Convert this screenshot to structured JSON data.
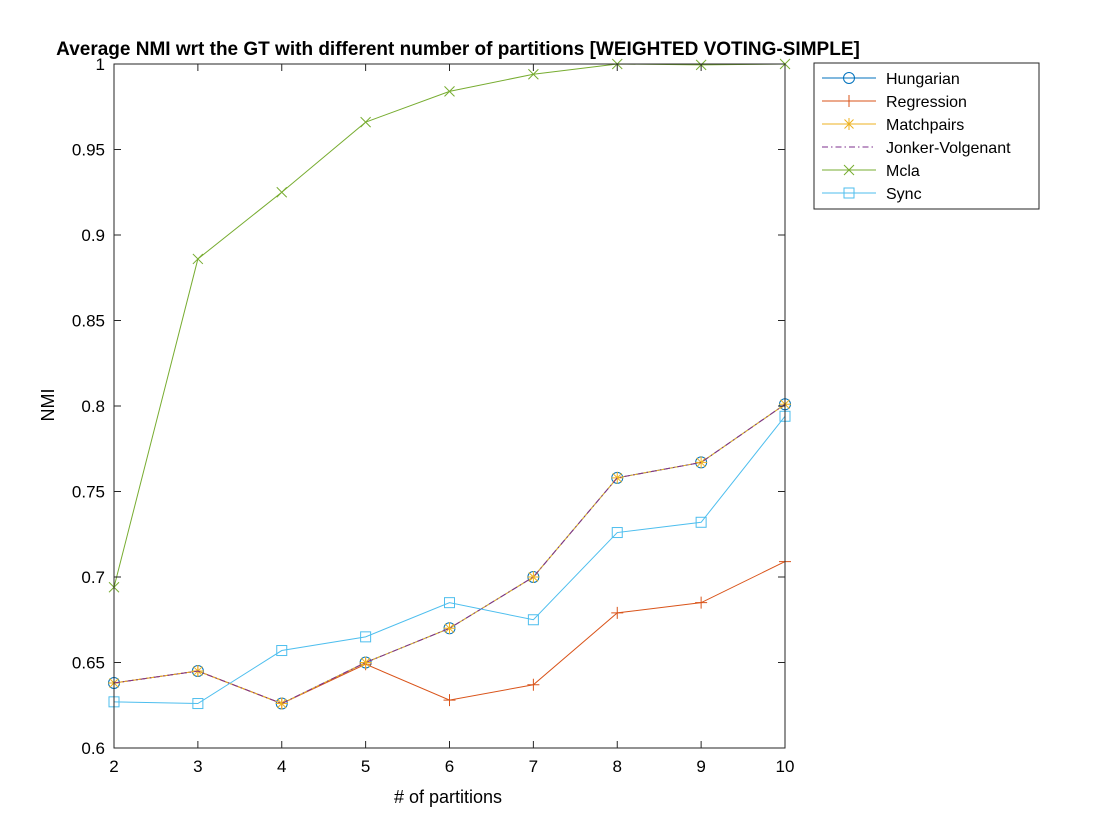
{
  "chart_data": {
    "type": "line",
    "title": "Average NMI wrt the GT with different number of partitions [WEIGHTED VOTING-SIMPLE]",
    "xlabel": "# of partitions",
    "ylabel": "NMI",
    "xlim": [
      2,
      10
    ],
    "ylim": [
      0.6,
      1
    ],
    "xticks": [
      2,
      3,
      4,
      5,
      6,
      7,
      8,
      9,
      10
    ],
    "yticks": [
      0.6,
      0.65,
      0.7,
      0.75,
      0.8,
      0.85,
      0.9,
      0.95,
      1
    ],
    "ytick_labels": [
      "0.6",
      "0.65",
      "0.7",
      "0.75",
      "0.8",
      "0.85",
      "0.9",
      "0.95",
      "1"
    ],
    "grid": false,
    "legend_position": "outside top-right",
    "x": [
      2,
      3,
      4,
      5,
      6,
      7,
      8,
      9,
      10
    ],
    "series": [
      {
        "name": "Hungarian",
        "color": "#0072BD",
        "marker": "circle",
        "dash": "solid",
        "values": [
          0.638,
          0.645,
          0.626,
          0.65,
          0.67,
          0.7,
          0.758,
          0.767,
          0.801
        ]
      },
      {
        "name": "Regression",
        "color": "#D95319",
        "marker": "plus",
        "dash": "solid",
        "values": [
          0.638,
          0.645,
          0.626,
          0.649,
          0.628,
          0.637,
          0.679,
          0.685,
          0.709
        ]
      },
      {
        "name": "Matchpairs",
        "color": "#EDB120",
        "marker": "asterisk",
        "dash": "solid",
        "values": [
          0.638,
          0.645,
          0.626,
          0.65,
          0.67,
          0.7,
          0.758,
          0.767,
          0.801
        ]
      },
      {
        "name": "Jonker-Volgenant",
        "color": "#7E2F8E",
        "marker": "none",
        "dash": "dashdot",
        "values": [
          0.638,
          0.645,
          0.626,
          0.65,
          0.67,
          0.7,
          0.758,
          0.767,
          0.801
        ]
      },
      {
        "name": "Mcla",
        "color": "#77AC30",
        "marker": "x",
        "dash": "solid",
        "values": [
          0.694,
          0.886,
          0.925,
          0.966,
          0.984,
          0.994,
          1.0,
          0.9995,
          1.0
        ]
      },
      {
        "name": "Sync",
        "color": "#4DBEEE",
        "marker": "square",
        "dash": "solid",
        "values": [
          0.627,
          0.626,
          0.657,
          0.665,
          0.685,
          0.675,
          0.726,
          0.732,
          0.794
        ]
      }
    ]
  }
}
